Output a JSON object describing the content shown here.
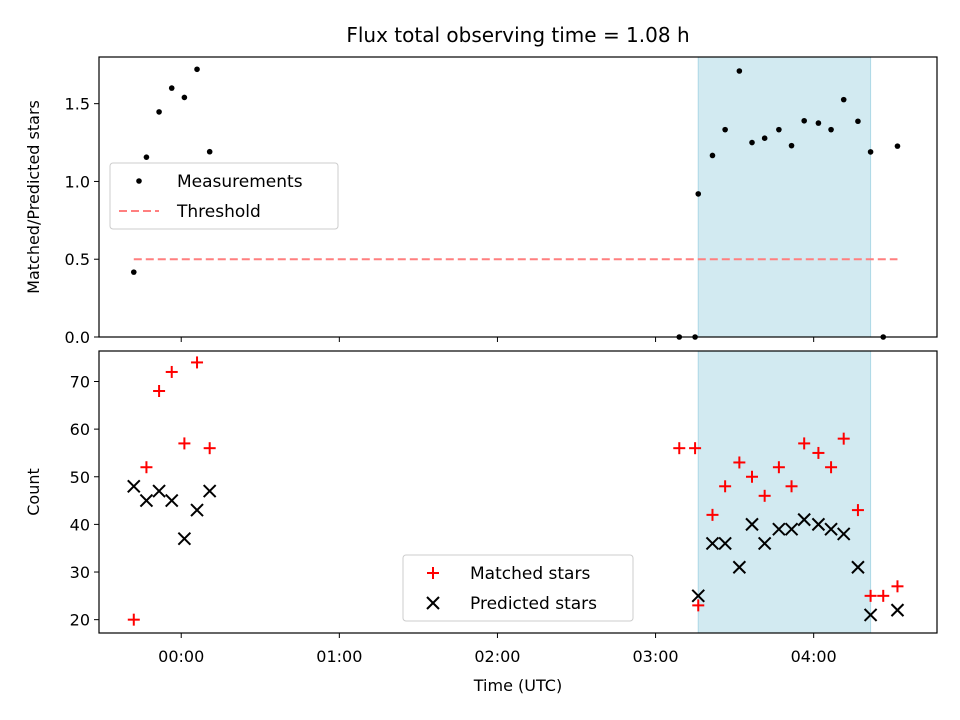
{
  "chart_data": {
    "title": "Flux total observing time = 1.08 h",
    "xlabel": "Time (UTC)",
    "x_unit": "hours UTC",
    "xlim": [
      -0.52,
      4.78
    ],
    "x_ticks": [
      {
        "value": 0,
        "label": "00:00"
      },
      {
        "value": 1,
        "label": "01:00"
      },
      {
        "value": 2,
        "label": "02:00"
      },
      {
        "value": 3,
        "label": "03:00"
      },
      {
        "value": 4,
        "label": "04:00"
      }
    ],
    "shaded_interval": [
      3.27,
      4.36
    ],
    "shade_color": "#add8e6",
    "panels": [
      {
        "type": "scatter",
        "ylabel": "Matched/Predicted stars",
        "ylim": [
          0,
          1.8
        ],
        "y_ticks": [
          {
            "value": 0.0,
            "label": "0.0"
          },
          {
            "value": 0.5,
            "label": "0.5"
          },
          {
            "value": 1.0,
            "label": "1.0"
          },
          {
            "value": 1.5,
            "label": "1.5"
          }
        ],
        "legend_position": "center-left",
        "series": [
          {
            "name": "Measurements",
            "marker": "dot",
            "color": "#000000",
            "points": [
              [
                -0.3,
                0.417
              ],
              [
                -0.22,
                1.156
              ],
              [
                -0.14,
                1.447
              ],
              [
                -0.06,
                1.6
              ],
              [
                0.02,
                1.54
              ],
              [
                0.1,
                1.721
              ],
              [
                0.18,
                1.191
              ],
              [
                3.15,
                0.0
              ],
              [
                3.25,
                0.0
              ],
              [
                3.27,
                0.92
              ],
              [
                3.36,
                1.167
              ],
              [
                3.44,
                1.333
              ],
              [
                3.53,
                1.71
              ],
              [
                3.61,
                1.25
              ],
              [
                3.69,
                1.278
              ],
              [
                3.78,
                1.333
              ],
              [
                3.86,
                1.23
              ],
              [
                3.94,
                1.39
              ],
              [
                4.03,
                1.375
              ],
              [
                4.11,
                1.333
              ],
              [
                4.19,
                1.526
              ],
              [
                4.28,
                1.387
              ],
              [
                4.36,
                1.19
              ],
              [
                4.44,
                0.0
              ],
              [
                4.53,
                1.227
              ]
            ]
          },
          {
            "name": "Threshold",
            "style": "dashed",
            "color": "#ff7f7f",
            "x": [
              -0.3,
              4.53
            ],
            "y": [
              0.5,
              0.5
            ]
          }
        ]
      },
      {
        "type": "scatter",
        "ylabel": "Count",
        "ylim": [
          17.2,
          76.4
        ],
        "y_ticks": [
          {
            "value": 20,
            "label": "20"
          },
          {
            "value": 30,
            "label": "30"
          },
          {
            "value": 40,
            "label": "40"
          },
          {
            "value": 50,
            "label": "50"
          },
          {
            "value": 60,
            "label": "60"
          },
          {
            "value": 70,
            "label": "70"
          }
        ],
        "legend_position": "lower-center",
        "series": [
          {
            "name": "Matched stars",
            "marker": "plus",
            "color": "#ff0000",
            "points": [
              [
                -0.3,
                20
              ],
              [
                -0.22,
                52
              ],
              [
                -0.14,
                68
              ],
              [
                -0.06,
                72
              ],
              [
                0.02,
                57
              ],
              [
                0.1,
                74
              ],
              [
                0.18,
                56
              ],
              [
                3.15,
                56
              ],
              [
                3.25,
                56
              ],
              [
                3.27,
                23
              ],
              [
                3.36,
                42
              ],
              [
                3.44,
                48
              ],
              [
                3.53,
                53
              ],
              [
                3.61,
                50
              ],
              [
                3.69,
                46
              ],
              [
                3.78,
                52
              ],
              [
                3.86,
                48
              ],
              [
                3.94,
                57
              ],
              [
                4.03,
                55
              ],
              [
                4.11,
                52
              ],
              [
                4.19,
                58
              ],
              [
                4.28,
                43
              ],
              [
                4.36,
                25
              ],
              [
                4.44,
                25
              ],
              [
                4.53,
                27
              ]
            ]
          },
          {
            "name": "Predicted stars",
            "marker": "x",
            "color": "#000000",
            "points": [
              [
                -0.3,
                48
              ],
              [
                -0.22,
                45
              ],
              [
                -0.14,
                47
              ],
              [
                -0.06,
                45
              ],
              [
                0.02,
                37
              ],
              [
                0.1,
                43
              ],
              [
                0.18,
                47
              ],
              [
                3.27,
                25
              ],
              [
                3.36,
                36
              ],
              [
                3.44,
                36
              ],
              [
                3.53,
                31
              ],
              [
                3.61,
                40
              ],
              [
                3.69,
                36
              ],
              [
                3.78,
                39
              ],
              [
                3.86,
                39
              ],
              [
                3.94,
                41
              ],
              [
                4.03,
                40
              ],
              [
                4.11,
                39
              ],
              [
                4.19,
                38
              ],
              [
                4.28,
                31
              ],
              [
                4.36,
                21
              ],
              [
                4.53,
                22
              ]
            ]
          }
        ]
      }
    ]
  }
}
